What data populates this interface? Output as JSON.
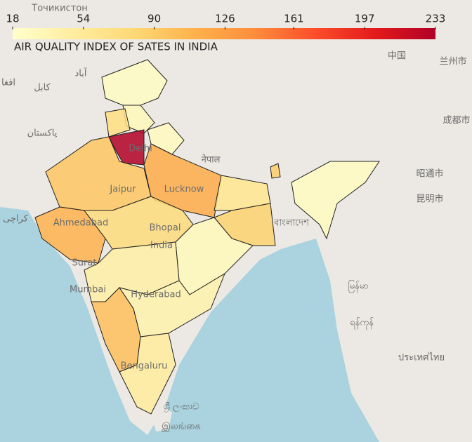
{
  "chart_data": {
    "type": "choropleth",
    "title": "AIR QUALITY INDEX OF SATES IN INDIA",
    "colorscale": [
      "#ffffcc",
      "#ffeda0",
      "#fed976",
      "#feb24c",
      "#fd8d3c",
      "#fc4e2a",
      "#e31a1c",
      "#b10026"
    ],
    "clim": [
      18,
      233
    ],
    "cticks": [
      18,
      54,
      90,
      126,
      161,
      197,
      233
    ],
    "values": [
      24,
      30,
      28,
      70,
      233,
      95,
      110,
      115,
      60,
      75,
      85,
      30,
      45,
      40,
      100,
      50,
      25,
      90
    ],
    "place_labels": [
      "Точикистон",
      "آباد",
      "کابل",
      "افغا",
      "پاکستان",
      "کراچی",
      "नेपाल",
      "Delhi",
      "Jaipur",
      "Lucknow",
      "Ahmedabad",
      "Bhopal",
      "India",
      "Surat",
      "Mumbai",
      "Hyderabad",
      "Bengaluru",
      "বাংলাদেশ",
      "中国",
      "兰州市",
      "成都市",
      "昭通市",
      "昆明市",
      "မြန်မာ",
      "ရန်ကုန်",
      "ประเทศไทย",
      "ශ්‍රී ලංකාව",
      "இலங்கை"
    ]
  }
}
